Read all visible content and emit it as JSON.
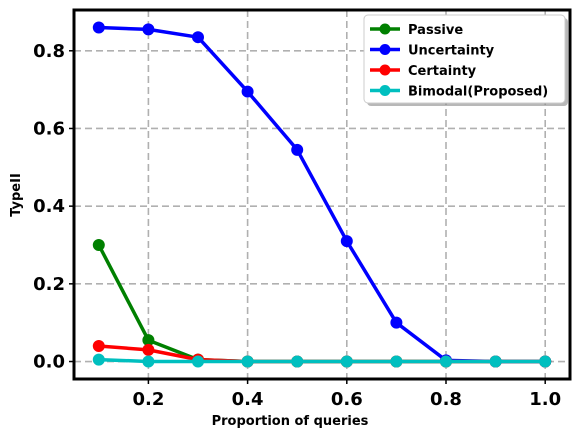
{
  "chart_data": {
    "type": "line",
    "xlabel": "Proportion of queries",
    "ylabel": "TypeII",
    "xlim": [
      0.05,
      1.05
    ],
    "ylim": [
      -0.045,
      0.905
    ],
    "xticks": [
      "0.2",
      "0.4",
      "0.6",
      "0.8",
      "1.0"
    ],
    "yticks": [
      "0.0",
      "0.2",
      "0.4",
      "0.6",
      "0.8"
    ],
    "grid": true,
    "legend_position": "top-right",
    "x": [
      0.1,
      0.2,
      0.3,
      0.4,
      0.5,
      0.6,
      0.7,
      0.8,
      0.9,
      1.0
    ],
    "series": [
      {
        "name": "Passive",
        "color": "#008000",
        "values": [
          0.3,
          0.055,
          0.005,
          0.0,
          0.0,
          0.0,
          0.0,
          0.0,
          0.0,
          0.0
        ]
      },
      {
        "name": "Uncertainty",
        "color": "#0000ff",
        "values": [
          0.86,
          0.855,
          0.835,
          0.695,
          0.545,
          0.31,
          0.1,
          0.003,
          0.0,
          0.0
        ]
      },
      {
        "name": "Certainty",
        "color": "#ff0000",
        "values": [
          0.04,
          0.03,
          0.005,
          0.0,
          0.0,
          0.0,
          0.0,
          0.0,
          0.0,
          0.0
        ]
      },
      {
        "name": "Bimodal(Proposed)",
        "color": "#00bfbf",
        "values": [
          0.005,
          0.0,
          0.0,
          0.0,
          0.0,
          0.0,
          0.0,
          0.0,
          0.0,
          0.0
        ]
      }
    ]
  }
}
